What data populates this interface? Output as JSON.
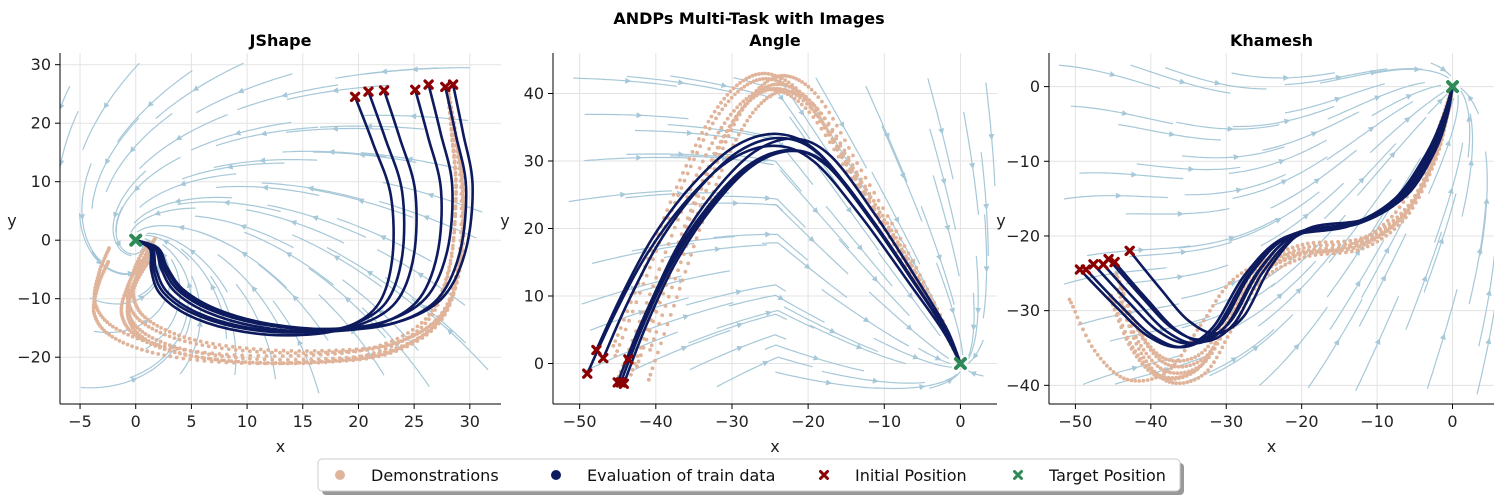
{
  "figure": {
    "title": "ANDPs Multi-Task with Images",
    "colors": {
      "demonstrations": "#e0b49a",
      "evaluation": "#0d1a5e",
      "initial": "#8b0000",
      "target": "#2e8b57",
      "streamlines": "#a6c8d8",
      "grid": "#e3e3e3"
    }
  },
  "legend": {
    "placement": "bottom-center",
    "items": [
      {
        "label": "Demonstrations",
        "marker": "dot"
      },
      {
        "label": "Evaluation of train data",
        "marker": "dot"
      },
      {
        "label": "Initial Position",
        "marker": "x"
      },
      {
        "label": "Target Position",
        "marker": "x"
      }
    ]
  },
  "chart_data": [
    {
      "type": "line",
      "title": "JShape",
      "xlabel": "x",
      "ylabel": "y",
      "xlim": [
        -6.8,
        32.8
      ],
      "ylim": [
        -28,
        32
      ],
      "xticks": [
        -5,
        0,
        5,
        10,
        15,
        20,
        25,
        30
      ],
      "yticks": [
        -20,
        -10,
        0,
        10,
        20,
        30
      ],
      "grid": true,
      "target": [
        0,
        0
      ],
      "initial_positions": [
        [
          19.7,
          24.5
        ],
        [
          20.9,
          25.4
        ],
        [
          22.3,
          25.6
        ],
        [
          25.1,
          25.7
        ],
        [
          26.3,
          26.6
        ],
        [
          27.8,
          26.2
        ],
        [
          28.5,
          26.6
        ]
      ],
      "evaluation_path": [
        [
          0,
          0
        ],
        [
          1.4,
          -1.5
        ],
        [
          1.6,
          -5
        ],
        [
          2.5,
          -9
        ],
        [
          5,
          -12.5
        ],
        [
          9,
          -15
        ],
        [
          14,
          -16
        ],
        [
          19,
          -15
        ],
        [
          22.5,
          -11
        ],
        [
          24,
          -3
        ],
        [
          24,
          8
        ],
        [
          22.5,
          17
        ],
        [
          21,
          25
        ]
      ],
      "demonstration_path": [
        [
          -1,
          -3
        ],
        [
          -2,
          -7
        ],
        [
          -2.5,
          -12
        ],
        [
          -1,
          -16
        ],
        [
          3,
          -19
        ],
        [
          9,
          -20.5
        ],
        [
          16,
          -20.5
        ],
        [
          22,
          -19
        ],
        [
          26.5,
          -14
        ],
        [
          28.5,
          -5
        ],
        [
          29,
          8
        ],
        [
          28.5,
          18
        ],
        [
          28,
          26
        ]
      ]
    },
    {
      "type": "line",
      "title": "Angle",
      "xlabel": "x",
      "ylabel": "y",
      "xlim": [
        -53.5,
        4.8
      ],
      "ylim": [
        -6,
        46
      ],
      "xticks": [
        -50,
        -40,
        -30,
        -20,
        -10,
        0
      ],
      "yticks": [
        0,
        10,
        20,
        30,
        40
      ],
      "grid": true,
      "target": [
        0,
        0
      ],
      "initial_positions": [
        [
          -49,
          -1.5
        ],
        [
          -47.8,
          2
        ],
        [
          -46.9,
          0.8
        ],
        [
          -45,
          -2.8
        ],
        [
          -44.2,
          -3
        ],
        [
          -43.6,
          0.6
        ],
        [
          -44.6,
          -2.8
        ]
      ],
      "evaluation_path": [
        [
          -46,
          0
        ],
        [
          -43,
          8
        ],
        [
          -39,
          17
        ],
        [
          -34,
          25
        ],
        [
          -28.5,
          31
        ],
        [
          -23,
          33
        ],
        [
          -18,
          30.5
        ],
        [
          -12,
          22
        ],
        [
          -6,
          12
        ],
        [
          -2,
          5
        ],
        [
          0,
          0
        ]
      ],
      "demonstration_path": [
        [
          -44,
          0
        ],
        [
          -40,
          12
        ],
        [
          -36,
          24
        ],
        [
          -32,
          34
        ],
        [
          -28,
          40
        ],
        [
          -24,
          41.5
        ],
        [
          -19.5,
          38
        ],
        [
          -14,
          28
        ],
        [
          -8,
          17
        ],
        [
          -3,
          7
        ],
        [
          0,
          0
        ]
      ]
    },
    {
      "type": "line",
      "title": "Khamesh",
      "xlabel": "x",
      "ylabel": "y",
      "xlim": [
        -53.5,
        5.5
      ],
      "ylim": [
        -42.5,
        4.5
      ],
      "xticks": [
        -50,
        -40,
        -30,
        -20,
        -10,
        0
      ],
      "yticks": [
        -40,
        -30,
        -20,
        -10,
        0
      ],
      "grid": true,
      "target": [
        0,
        0
      ],
      "initial_positions": [
        [
          -49.4,
          -24.5
        ],
        [
          -48.6,
          -24.5
        ],
        [
          -47.6,
          -23.8
        ],
        [
          -46.3,
          -23.8
        ],
        [
          -45.6,
          -23.1
        ],
        [
          -44.8,
          -23.5
        ],
        [
          -42.8,
          -22
        ]
      ],
      "evaluation_path": [
        [
          -46.5,
          -24
        ],
        [
          -42,
          -29
        ],
        [
          -38,
          -33
        ],
        [
          -34,
          -34.5
        ],
        [
          -30,
          -32
        ],
        [
          -26,
          -25
        ],
        [
          -21,
          -20
        ],
        [
          -13,
          -18.5
        ],
        [
          -7,
          -15
        ],
        [
          -3,
          -9
        ],
        [
          -1,
          -4
        ],
        [
          0,
          0
        ]
      ],
      "demonstration_path": [
        [
          -47,
          -27
        ],
        [
          -44,
          -34
        ],
        [
          -40,
          -38
        ],
        [
          -35,
          -37
        ],
        [
          -31,
          -31
        ],
        [
          -27,
          -25
        ],
        [
          -21,
          -22
        ],
        [
          -13,
          -21
        ],
        [
          -7,
          -17
        ],
        [
          -3,
          -10
        ],
        [
          -1,
          -4
        ],
        [
          0,
          0
        ]
      ]
    }
  ]
}
